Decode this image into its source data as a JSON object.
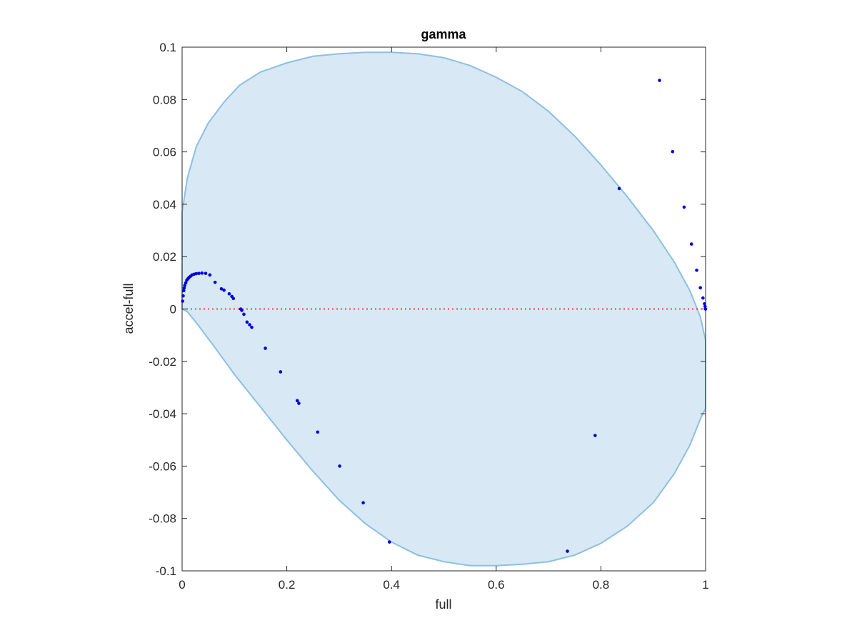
{
  "chart_data": {
    "type": "scatter",
    "title": "gamma",
    "xlabel": "full",
    "ylabel": "accel-full",
    "xlim": [
      0,
      1
    ],
    "ylim": [
      -0.1,
      0.1
    ],
    "xticks": [
      0,
      0.2,
      0.4,
      0.6,
      0.8,
      1
    ],
    "xtick_labels": [
      "0",
      "0.2",
      "0.4",
      "0.6",
      "0.8",
      "1"
    ],
    "yticks": [
      -0.1,
      -0.08,
      -0.06,
      -0.04,
      -0.02,
      0,
      0.02,
      0.04,
      0.06,
      0.08,
      0.1
    ],
    "ytick_labels": [
      "-0.1",
      "-0.08",
      "-0.06",
      "-0.04",
      "-0.02",
      "0",
      "0.02",
      "0.04",
      "0.06",
      "0.08",
      "0.1"
    ],
    "grid": false,
    "reference_line": {
      "y": 0,
      "style": "dotted",
      "color": "#ff0000"
    },
    "ellipse_region": {
      "fill": "#d8e8f4",
      "stroke": "#8cc0e0",
      "polygon": [
        [
          0.0,
          0.037
        ],
        [
          0.01,
          0.05
        ],
        [
          0.027,
          0.062
        ],
        [
          0.05,
          0.071
        ],
        [
          0.08,
          0.079
        ],
        [
          0.11,
          0.0855
        ],
        [
          0.15,
          0.0905
        ],
        [
          0.2,
          0.094
        ],
        [
          0.25,
          0.0965
        ],
        [
          0.3,
          0.0975
        ],
        [
          0.35,
          0.098
        ],
        [
          0.4,
          0.098
        ],
        [
          0.45,
          0.0975
        ],
        [
          0.5,
          0.096
        ],
        [
          0.55,
          0.093
        ],
        [
          0.6,
          0.0885
        ],
        [
          0.65,
          0.083
        ],
        [
          0.7,
          0.0755
        ],
        [
          0.75,
          0.066
        ],
        [
          0.8,
          0.055
        ],
        [
          0.85,
          0.043
        ],
        [
          0.9,
          0.03
        ],
        [
          0.94,
          0.018
        ],
        [
          0.97,
          0.007
        ],
        [
          0.99,
          -0.003
        ],
        [
          1.0,
          -0.012
        ],
        [
          1.0,
          -0.038
        ],
        [
          0.99,
          -0.042
        ],
        [
          0.97,
          -0.052
        ],
        [
          0.94,
          -0.063
        ],
        [
          0.9,
          -0.074
        ],
        [
          0.85,
          -0.083
        ],
        [
          0.8,
          -0.0895
        ],
        [
          0.75,
          -0.094
        ],
        [
          0.7,
          -0.0965
        ],
        [
          0.65,
          -0.0975
        ],
        [
          0.6,
          -0.098
        ],
        [
          0.55,
          -0.098
        ],
        [
          0.5,
          -0.0965
        ],
        [
          0.45,
          -0.094
        ],
        [
          0.4,
          -0.089
        ],
        [
          0.35,
          -0.082
        ],
        [
          0.3,
          -0.073
        ],
        [
          0.25,
          -0.062
        ],
        [
          0.2,
          -0.05
        ],
        [
          0.15,
          -0.0375
        ],
        [
          0.1,
          -0.025
        ],
        [
          0.06,
          -0.014
        ],
        [
          0.03,
          -0.006
        ],
        [
          0.01,
          -0.001
        ],
        [
          0.0,
          0.0
        ]
      ]
    },
    "series": [
      {
        "marker_color": "#0000dd",
        "points": [
          [
            0.001,
            0.003
          ],
          [
            0.002,
            0.005
          ],
          [
            0.003,
            0.007
          ],
          [
            0.004,
            0.008
          ],
          [
            0.005,
            0.009
          ],
          [
            0.007,
            0.01
          ],
          [
            0.009,
            0.011
          ],
          [
            0.011,
            0.0115
          ],
          [
            0.013,
            0.012
          ],
          [
            0.016,
            0.0125
          ],
          [
            0.019,
            0.013
          ],
          [
            0.023,
            0.0133
          ],
          [
            0.027,
            0.0135
          ],
          [
            0.032,
            0.0136
          ],
          [
            0.038,
            0.0137
          ],
          [
            0.045,
            0.0136
          ],
          [
            0.053,
            0.013
          ],
          [
            0.063,
            0.0102
          ],
          [
            0.075,
            0.0077
          ],
          [
            0.08,
            0.0072
          ],
          [
            0.09,
            0.0058
          ],
          [
            0.095,
            0.0048
          ],
          [
            0.098,
            0.004
          ],
          [
            0.112,
            0.0
          ],
          [
            0.114,
            -0.0005
          ],
          [
            0.118,
            -0.002
          ],
          [
            0.124,
            -0.005
          ],
          [
            0.129,
            -0.006
          ],
          [
            0.133,
            -0.007
          ],
          [
            0.159,
            -0.015
          ],
          [
            0.188,
            -0.024
          ],
          [
            0.22,
            -0.035
          ],
          [
            0.223,
            -0.036
          ],
          [
            0.259,
            -0.047
          ],
          [
            0.301,
            -0.06
          ],
          [
            0.346,
            -0.074
          ],
          [
            0.396,
            -0.089
          ],
          [
            0.736,
            -0.0925
          ],
          [
            0.789,
            -0.0483
          ],
          [
            0.835,
            0.046
          ],
          [
            0.912,
            0.0873
          ],
          [
            0.937,
            0.0601
          ],
          [
            0.959,
            0.0389
          ],
          [
            0.973,
            0.0248
          ],
          [
            0.983,
            0.0148
          ],
          [
            0.99,
            0.0081
          ],
          [
            0.995,
            0.0042
          ],
          [
            0.998,
            0.002
          ],
          [
            0.999,
            0.001
          ],
          [
            1.0,
            0.0
          ]
        ]
      }
    ]
  }
}
